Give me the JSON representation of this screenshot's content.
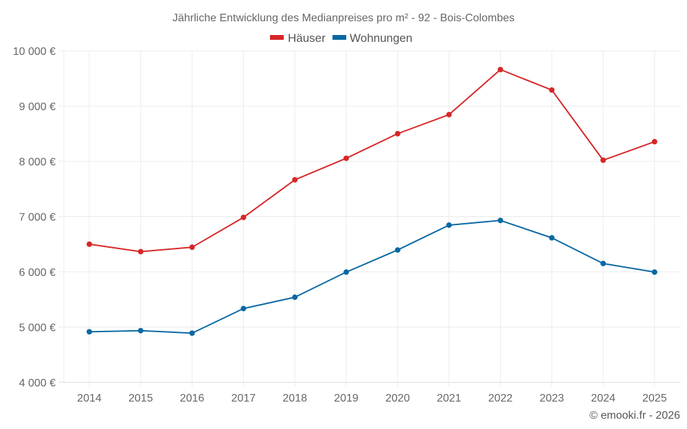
{
  "chart_data": {
    "type": "line",
    "title": "Jährliche Entwicklung des Medianpreises pro m² - 92 - Bois-Colombes",
    "xlabel": "",
    "ylabel": "",
    "categories": [
      "2014",
      "2015",
      "2016",
      "2017",
      "2018",
      "2019",
      "2020",
      "2021",
      "2022",
      "2023",
      "2024",
      "2025"
    ],
    "series": [
      {
        "name": "Häuser",
        "color": "#d62728",
        "values": [
          6500,
          6365,
          6445,
          6985,
          7665,
          8055,
          8500,
          8845,
          9660,
          9290,
          8020,
          8355
        ]
      },
      {
        "name": "Wohnungen",
        "color": "#0b68a3",
        "values": [
          4915,
          4935,
          4890,
          5335,
          5540,
          5995,
          6395,
          6845,
          6930,
          6615,
          6150,
          5995
        ]
      }
    ],
    "ylim": [
      4000,
      10000
    ],
    "yticks": [
      4000,
      5000,
      6000,
      7000,
      8000,
      9000,
      10000
    ],
    "ytick_labels": [
      "4 000 €",
      "5 000 €",
      "6 000 €",
      "7 000 €",
      "8 000 €",
      "9 000 €",
      "10 000 €"
    ],
    "grid": true,
    "legend_position": "top-center"
  },
  "credit": "© emooki.fr - 2026",
  "colors": {
    "grid": "#ebebeb",
    "axis": "#d9d9d9",
    "text": "#666666"
  }
}
